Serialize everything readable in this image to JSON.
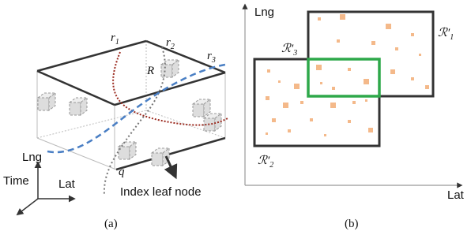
{
  "panel_a": {
    "curves": [
      {
        "name": "r",
        "sub": "1"
      },
      {
        "name": "r",
        "sub": "2"
      },
      {
        "name": "r",
        "sub": "3"
      }
    ],
    "region": "R",
    "query": "q",
    "axes": {
      "lng": "Lng",
      "time": "Time",
      "lat": "Lat"
    },
    "callout": "Index leaf node",
    "caption": "(a)"
  },
  "panel_b": {
    "axes": {
      "y": "Lng",
      "x": "Lat"
    },
    "regions": [
      {
        "name": "ℛ′",
        "sub": "1"
      },
      {
        "name": "ℛ′",
        "sub": "2"
      },
      {
        "name": "ℛ′",
        "sub": "3"
      }
    ],
    "caption": "(b)"
  }
}
